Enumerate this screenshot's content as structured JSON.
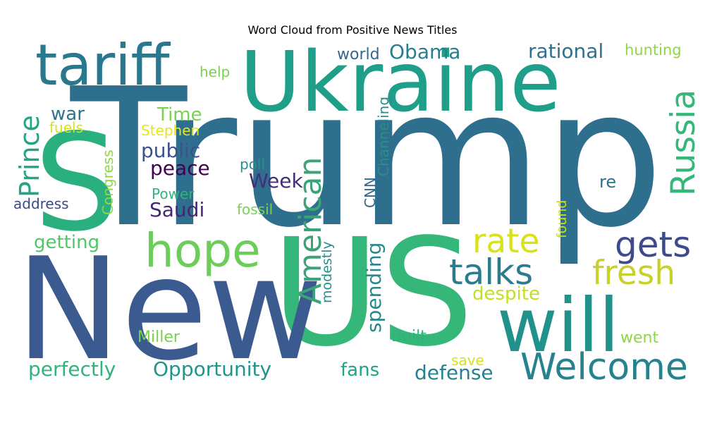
{
  "chart_data": {
    "type": "wordcloud",
    "title": "Word Cloud from Positive News Titles",
    "background": "#ffffff",
    "words": [
      {
        "text": "Trump",
        "weight": 1.0,
        "color": "#2e6f8e"
      },
      {
        "text": "US",
        "weight": 0.95,
        "color": "#35b779"
      },
      {
        "text": "New",
        "weight": 0.92,
        "color": "#3b5a8f"
      },
      {
        "text": "Ukraine",
        "weight": 0.62,
        "color": "#1f9e89"
      },
      {
        "text": "S",
        "weight": 0.7,
        "color": "#2ab07f"
      },
      {
        "text": "will",
        "weight": 0.48,
        "color": "#21918c"
      },
      {
        "text": "tariff",
        "weight": 0.34,
        "color": "#2a788e"
      },
      {
        "text": "hope",
        "weight": 0.31,
        "color": "#6ccd5a"
      },
      {
        "text": "Welcome",
        "weight": 0.24,
        "color": "#26828e"
      },
      {
        "text": "Russia",
        "weight": 0.22,
        "color": "#35b779"
      },
      {
        "text": "American",
        "weight": 0.22,
        "color": "#3ba378"
      },
      {
        "text": "talks",
        "weight": 0.2,
        "color": "#2d7c8e"
      },
      {
        "text": "gets",
        "weight": 0.17,
        "color": "#3e4a89"
      },
      {
        "text": "fresh",
        "weight": 0.16,
        "color": "#c8d12a"
      },
      {
        "text": "rate",
        "weight": 0.16,
        "color": "#d8e219"
      },
      {
        "text": "Prince",
        "weight": 0.15,
        "color": "#25a484"
      },
      {
        "text": "spending",
        "weight": 0.1,
        "color": "#23898e"
      },
      {
        "text": "Opportunity",
        "weight": 0.1,
        "color": "#1f968b"
      },
      {
        "text": "perfectly",
        "weight": 0.1,
        "color": "#2fb47c"
      },
      {
        "text": "defense",
        "weight": 0.1,
        "color": "#26828e"
      },
      {
        "text": "fans",
        "weight": 0.1,
        "color": "#20a486"
      },
      {
        "text": "Obama",
        "weight": 0.1,
        "color": "#287d8e"
      },
      {
        "text": "rational",
        "weight": 0.1,
        "color": "#2c728e"
      },
      {
        "text": "public",
        "weight": 0.1,
        "color": "#3b528b"
      },
      {
        "text": "peace",
        "weight": 0.1,
        "color": "#440154"
      },
      {
        "text": "Saudi",
        "weight": 0.1,
        "color": "#482475"
      },
      {
        "text": "Week",
        "weight": 0.1,
        "color": "#472c7a"
      },
      {
        "text": "despite",
        "weight": 0.1,
        "color": "#c2df23"
      },
      {
        "text": "getting",
        "weight": 0.09,
        "color": "#52c569"
      },
      {
        "text": "war",
        "weight": 0.09,
        "color": "#2a768e"
      },
      {
        "text": "Time",
        "weight": 0.09,
        "color": "#7ad151"
      },
      {
        "text": "world",
        "weight": 0.08,
        "color": "#31688e"
      },
      {
        "text": "hunting",
        "weight": 0.08,
        "color": "#8fd744"
      },
      {
        "text": "help",
        "weight": 0.07,
        "color": "#7ad151"
      },
      {
        "text": "Channeling",
        "weight": 0.07,
        "color": "#2a8e8a"
      },
      {
        "text": "Stephen",
        "weight": 0.07,
        "color": "#e6e71a"
      },
      {
        "text": "fuels",
        "weight": 0.07,
        "color": "#d5e21a"
      },
      {
        "text": "poll",
        "weight": 0.07,
        "color": "#2a8e8a"
      },
      {
        "text": "Congress",
        "weight": 0.07,
        "color": "#8fd744"
      },
      {
        "text": "Power",
        "weight": 0.07,
        "color": "#2fb47c"
      },
      {
        "text": "address",
        "weight": 0.07,
        "color": "#3e4a89"
      },
      {
        "text": "fossil",
        "weight": 0.07,
        "color": "#7ad151"
      },
      {
        "text": "CNN",
        "weight": 0.07,
        "color": "#31688e"
      },
      {
        "text": "re",
        "weight": 0.08,
        "color": "#2c728e"
      },
      {
        "text": "found",
        "weight": 0.07,
        "color": "#c8e020"
      },
      {
        "text": "modestly",
        "weight": 0.07,
        "color": "#2a8e8a"
      },
      {
        "text": "Miller",
        "weight": 0.08,
        "color": "#7ad151"
      },
      {
        "text": "Built",
        "weight": 0.08,
        "color": "#2fb47c"
      },
      {
        "text": "went",
        "weight": 0.08,
        "color": "#8fd744"
      },
      {
        "text": "save",
        "weight": 0.07,
        "color": "#d8e219"
      }
    ]
  }
}
